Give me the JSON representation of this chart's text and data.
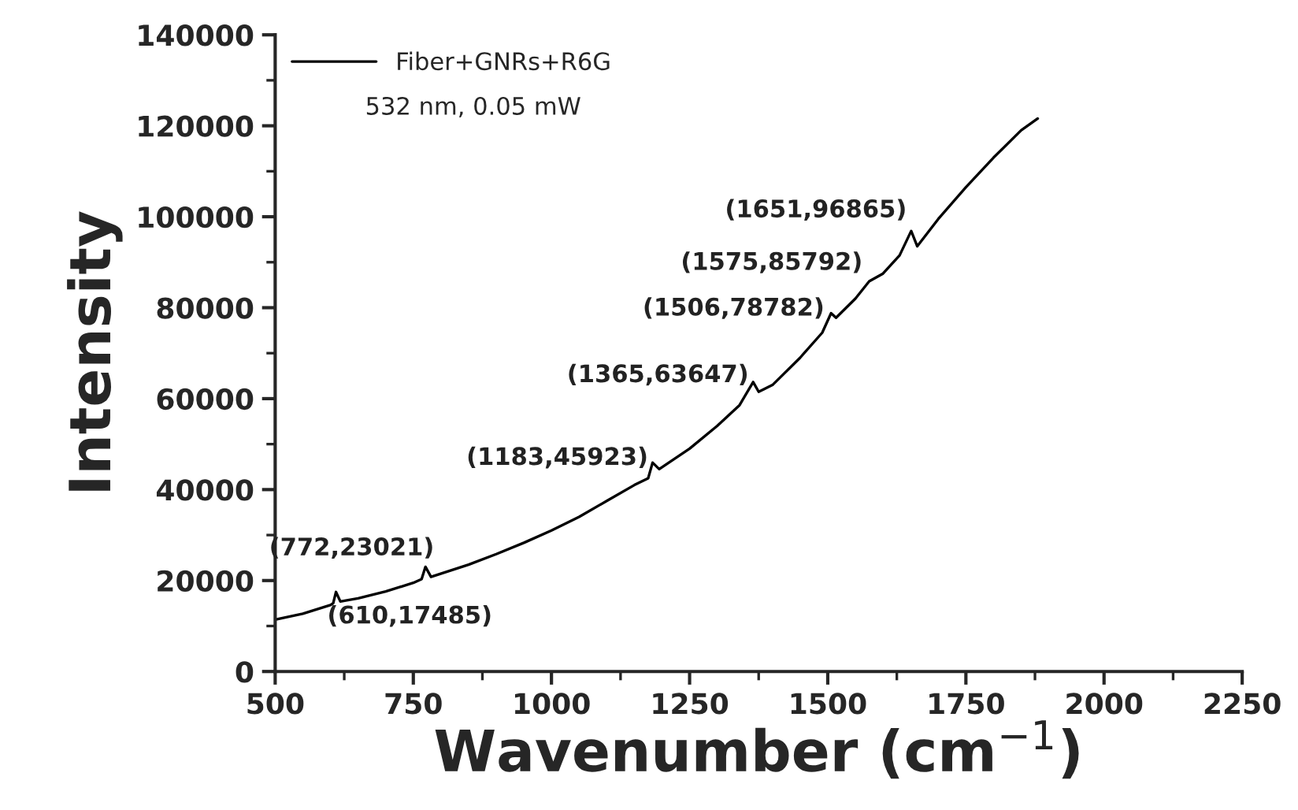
{
  "chart_data": {
    "type": "line",
    "xlabel": "Wavenumber (cm$^{−1}$)",
    "ylabel": "Intensity",
    "xlim": [
      500,
      2250
    ],
    "xticks": [
      500,
      750,
      1000,
      1250,
      1500,
      1750,
      2000,
      2250
    ],
    "ylim": [
      0,
      140000
    ],
    "yticks": [
      0,
      20000,
      40000,
      60000,
      80000,
      100000,
      120000,
      140000
    ],
    "legend": "top left",
    "grid": false,
    "marker": "none",
    "line_style": "solid",
    "series": [
      {
        "name": "Fiber+GNRs+R6G",
        "color": "#000000",
        "x": [
          500,
          550,
          600,
          605,
          610,
          618,
          650,
          700,
          750,
          765,
          772,
          782,
          850,
          900,
          950,
          1000,
          1050,
          1100,
          1150,
          1175,
          1183,
          1195,
          1250,
          1300,
          1340,
          1365,
          1375,
          1400,
          1450,
          1490,
          1506,
          1515,
          1550,
          1575,
          1600,
          1630,
          1651,
          1662,
          1700,
          1750,
          1800,
          1850,
          1880
        ],
        "values": [
          11400,
          12700,
          14600,
          15000,
          17485,
          15400,
          16100,
          17600,
          19500,
          20300,
          23021,
          20800,
          23500,
          25800,
          28300,
          31000,
          34000,
          37500,
          41000,
          42500,
          45923,
          44500,
          49000,
          54000,
          58500,
          63647,
          61500,
          63000,
          69000,
          74500,
          78782,
          77800,
          82000,
          85792,
          87500,
          91500,
          96865,
          93500,
          99500,
          106500,
          113000,
          119000,
          121600
        ]
      }
    ],
    "annotations": [
      "532 nm, 0.05 mW",
      {
        "text": "(610,17485)",
        "x": 610,
        "y": 17485
      },
      {
        "text": "(772,23021)",
        "x": 772,
        "y": 23021
      },
      {
        "text": "(1183,45923)",
        "x": 1183,
        "y": 45923
      },
      {
        "text": "(1365,63647)",
        "x": 1365,
        "y": 63647
      },
      {
        "text": "(1506,78782)",
        "x": 1506,
        "y": 78782
      },
      {
        "text": "(1575,85792)",
        "x": 1575,
        "y": 85792
      },
      {
        "text": "(1651,96865)",
        "x": 1651,
        "y": 96865
      }
    ]
  }
}
